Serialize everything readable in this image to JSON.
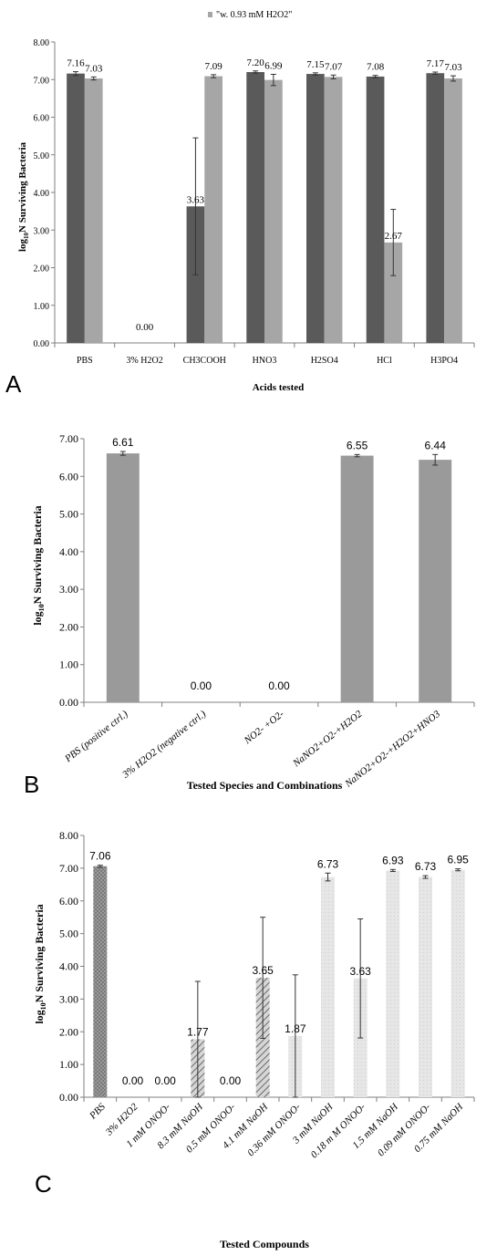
{
  "panels": {
    "a_letter": "A",
    "b_letter": "B",
    "c_letter": "C"
  },
  "colors": {
    "dark_bar": "#5a5a5a",
    "light_bar": "#a6a6a6",
    "panel_b_bar": "#9a9a9a",
    "axis": "#7f7f7f",
    "pbs_c": "#8a8a8a",
    "hatch_c": "#b5b5b5",
    "light_c": "#e2e2e2"
  },
  "chart_data": [
    {
      "id": "A",
      "type": "bar",
      "legend_text": "\"w. 0.93 mM H2O2\"",
      "legend_placement": "top-center",
      "xlabel": "Acids tested",
      "ylabel_prefix": "log",
      "ylabel_sub": "10",
      "ylabel_suffix": "N Surviving Bacteria",
      "ylim": [
        0,
        8
      ],
      "yticks": [
        "0.00",
        "1.00",
        "2.00",
        "3.00",
        "4.00",
        "5.00",
        "6.00",
        "7.00",
        "8.00"
      ],
      "categories": [
        "PBS",
        "3% H2O2",
        "CH3COOH",
        "HNO3",
        "H2SO4",
        "HCl",
        "H3PO4"
      ],
      "series": [
        {
          "values": [
            7.16,
            0.0,
            3.63,
            7.2,
            7.15,
            7.08,
            7.17
          ],
          "labels": [
            "7.16",
            "0.00",
            "3.63",
            "7.20",
            "7.15",
            "7.08",
            "7.17"
          ],
          "errors": [
            0.05,
            0,
            1.82,
            0.03,
            0.03,
            0.03,
            0.03
          ]
        },
        {
          "name": "w. 0.93 mM H2O2",
          "values": [
            7.03,
            0.0,
            7.09,
            6.99,
            7.07,
            2.67,
            7.03
          ],
          "labels": [
            "7.03",
            "",
            "7.09",
            "6.99",
            "7.07",
            "2.67",
            "7.03"
          ],
          "errors": [
            0.04,
            0,
            0.04,
            0.15,
            0.05,
            0.88,
            0.07
          ]
        }
      ]
    },
    {
      "id": "B",
      "type": "bar",
      "xlabel": "Tested  Species and Combinations",
      "ylabel_prefix": "log",
      "ylabel_sub": "10",
      "ylabel_suffix": "N Surviving Bacteria",
      "ylim": [
        0,
        7
      ],
      "yticks": [
        "0.00",
        "1.00",
        "2.00",
        "3.00",
        "4.00",
        "5.00",
        "6.00",
        "7.00"
      ],
      "categories": [
        "PBS (positive ctrl.)",
        "3% H2O2 (negative ctrl.)",
        "NO2- +O2-",
        "NaNO2+O2-+H2O2",
        "NaNO2+O2-+H2O2+HNO3"
      ],
      "series": [
        {
          "values": [
            6.61,
            0.0,
            0.0,
            6.55,
            6.44
          ],
          "labels": [
            "6.61",
            "0.00",
            "0.00",
            "6.55",
            "6.44"
          ],
          "errors": [
            0.05,
            0,
            0,
            0.03,
            0.14
          ]
        }
      ]
    },
    {
      "id": "C",
      "type": "bar",
      "xlabel": "Tested Compounds",
      "ylabel_prefix": "log",
      "ylabel_sub": "10",
      "ylabel_suffix": "N Surviving Bacteria",
      "ylim": [
        0,
        8
      ],
      "yticks": [
        "0.00",
        "1.00",
        "2.00",
        "3.00",
        "4.00",
        "5.00",
        "6.00",
        "7.00",
        "8.00"
      ],
      "categories": [
        "PBS",
        "3% H2O2",
        "1 mM ONOO-",
        "8.3 mM NaOH",
        "0.5 mM ONOO-",
        "4.1 mM NaOH",
        "0.36 mM ONOO-",
        "3 mM NaOH",
        "0.18 m M ONOO-",
        "1.5 mM NaOH",
        "0.09 mM ONOO-",
        "0.75 mM NaOH"
      ],
      "series": [
        {
          "values": [
            7.06,
            0.0,
            0.0,
            1.77,
            0.0,
            3.65,
            1.87,
            6.73,
            3.63,
            6.93,
            6.73,
            6.95
          ],
          "labels": [
            "7.06",
            "0.00",
            "0.00",
            "1.77",
            "0.00",
            "3.65",
            "1.87",
            "6.73",
            "3.63",
            "6.93",
            "6.73",
            "6.95"
          ],
          "errors": [
            0.03,
            0,
            0,
            1.77,
            0,
            1.85,
            1.87,
            0.12,
            1.82,
            0.03,
            0.04,
            0.03
          ],
          "styles": [
            "pbs",
            "none",
            "none",
            "hatch",
            "none",
            "hatch",
            "light",
            "light",
            "light",
            "light",
            "light",
            "light"
          ]
        }
      ]
    }
  ]
}
